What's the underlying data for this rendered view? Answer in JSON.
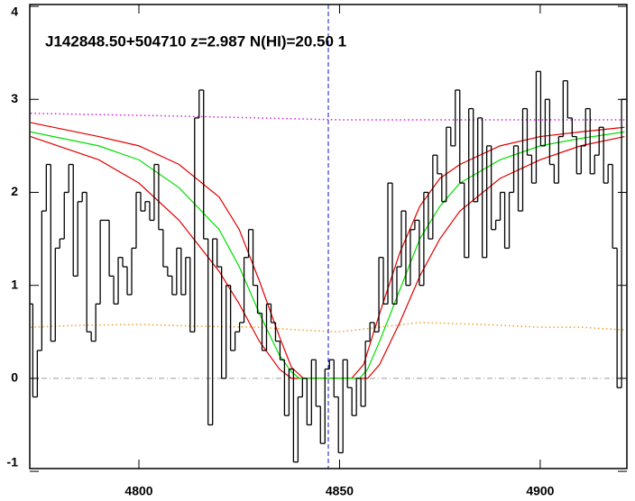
{
  "chart_data": {
    "type": "line",
    "title": "J142848.50+504710 z=2.987 N(HI)=20.50 1",
    "xlim": [
      4772.8,
      4921.6
    ],
    "ylim": [
      -0.97,
      4.02
    ],
    "xticks": [
      4800,
      4850,
      4900
    ],
    "yticks": [
      -1,
      0,
      1,
      2,
      3,
      4
    ],
    "hline": {
      "y": 0,
      "color": "#999999"
    },
    "vline": {
      "x": 4847.2,
      "color": "#1010c8"
    },
    "series": [
      {
        "style": "dotted",
        "color": "#d020e0",
        "x": [
          4773,
          4810,
          4850,
          4880,
          4921
        ],
        "values": [
          2.85,
          2.82,
          2.78,
          2.78,
          2.78
        ]
      },
      {
        "style": "dotted",
        "color": "#f0a030",
        "x": [
          4773,
          4785,
          4800,
          4815,
          4830,
          4840,
          4850,
          4860,
          4870,
          4885,
          4900,
          4910,
          4921
        ],
        "values": [
          0.55,
          0.57,
          0.58,
          0.56,
          0.55,
          0.52,
          0.5,
          0.55,
          0.6,
          0.58,
          0.55,
          0.55,
          0.52
        ]
      },
      {
        "style": "solid",
        "color": "#e00000",
        "x": [
          4773,
          4790,
          4800,
          4810,
          4820,
          4825,
          4830,
          4835,
          4838,
          4841,
          4853,
          4856,
          4860,
          4865,
          4870,
          4875,
          4880,
          4890,
          4900,
          4910,
          4921
        ],
        "values": [
          2.75,
          2.6,
          2.5,
          2.3,
          1.95,
          1.6,
          1.05,
          0.45,
          0.12,
          0,
          0,
          0.15,
          0.7,
          1.35,
          1.85,
          2.15,
          2.3,
          2.5,
          2.6,
          2.65,
          2.7
        ]
      },
      {
        "style": "solid",
        "color": "#e00000",
        "x": [
          4773,
          4790,
          4800,
          4810,
          4820,
          4825,
          4830,
          4835,
          4838,
          4857,
          4860,
          4865,
          4870,
          4875,
          4880,
          4890,
          4900,
          4910,
          4921
        ],
        "values": [
          2.6,
          2.35,
          2.1,
          1.7,
          1.15,
          0.8,
          0.4,
          0.1,
          0,
          0,
          0.15,
          0.6,
          1.1,
          1.5,
          1.8,
          2.15,
          2.35,
          2.5,
          2.6
        ]
      },
      {
        "style": "solid",
        "color": "#00e000",
        "x": [
          4773,
          4790,
          4800,
          4810,
          4820,
          4825,
          4830,
          4835,
          4838,
          4840,
          4855,
          4857,
          4860,
          4865,
          4870,
          4875,
          4880,
          4890,
          4900,
          4910,
          4921
        ],
        "values": [
          2.65,
          2.5,
          2.35,
          2.05,
          1.6,
          1.2,
          0.7,
          0.25,
          0.07,
          0,
          0,
          0.1,
          0.4,
          0.95,
          1.5,
          1.85,
          2.1,
          2.35,
          2.5,
          2.58,
          2.65
        ]
      },
      {
        "style": "step",
        "color": "#000000",
        "x": [
          4773,
          4774.12,
          4775.24,
          4776.36,
          4777.48,
          4778.6,
          4779.72,
          4780.84,
          4781.96,
          4783.08,
          4784.2,
          4785.32,
          4786.44,
          4787.56,
          4788.68,
          4789.8,
          4790.92,
          4792.04,
          4793.16,
          4794.28,
          4795.4,
          4796.52,
          4797.64,
          4798.76,
          4799.88,
          4801,
          4802.12,
          4803.24,
          4804.36,
          4805.48,
          4806.6,
          4807.72,
          4808.84,
          4809.96,
          4811.08,
          4812.2,
          4813.32,
          4814.44,
          4815.56,
          4816.68,
          4817.8,
          4818.92,
          4820.04,
          4821.16,
          4822.28,
          4823.4,
          4824.52,
          4825.64,
          4826.76,
          4827.88,
          4829,
          4830.12,
          4831.24,
          4832.36,
          4833.48,
          4834.6,
          4835.72,
          4836.84,
          4837.96,
          4839.08,
          4840.2,
          4841.32,
          4842.44,
          4843.56,
          4844.68,
          4845.8,
          4846.92,
          4848.04,
          4849.16,
          4850.28,
          4851.4,
          4852.52,
          4853.64,
          4854.76,
          4855.88,
          4857,
          4858.12,
          4859.24,
          4860.36,
          4861.48,
          4862.6,
          4863.72,
          4864.84,
          4865.96,
          4867.08,
          4868.2,
          4869.32,
          4870.44,
          4871.56,
          4872.68,
          4873.8,
          4874.92,
          4876.04,
          4877.16,
          4878.28,
          4879.4,
          4880.52,
          4881.64,
          4882.76,
          4883.88,
          4885,
          4886.12,
          4887.24,
          4888.36,
          4889.48,
          4890.6,
          4891.72,
          4892.84,
          4893.96,
          4895.08,
          4896.2,
          4897.32,
          4898.44,
          4899.56,
          4900.68,
          4901.8,
          4902.92,
          4904.04,
          4905.16,
          4906.28,
          4907.4,
          4908.52,
          4909.64,
          4910.76,
          4911.88,
          4913,
          4914.12,
          4915.24,
          4916.36,
          4917.48,
          4918.6,
          4919.72,
          4920.84
        ],
        "values": [
          0.8,
          -0.2,
          0.3,
          1.8,
          2.3,
          0.4,
          1.4,
          1.5,
          2.0,
          2.3,
          1.1,
          1.9,
          2.0,
          0.5,
          0.4,
          0.8,
          1.7,
          1.7,
          1.1,
          0.8,
          1.3,
          1.2,
          0.9,
          1.4,
          2.0,
          1.8,
          1.9,
          1.7,
          2.3,
          1.6,
          1.2,
          1.1,
          0.9,
          1.4,
          0.9,
          1.3,
          0.5,
          2.8,
          3.1,
          1.5,
          -0.5,
          1.5,
          1.2,
          0.0,
          1.0,
          0.3,
          0.5,
          0.6,
          1.3,
          1.6,
          1.0,
          0.7,
          0.3,
          0.8,
          0.6,
          0.4,
          0.2,
          -0.4,
          0.1,
          -0.9,
          -0.2,
          0.0,
          -0.5,
          0.2,
          -0.3,
          -0.7,
          0.1,
          0.2,
          -0.2,
          -0.8,
          0.2,
          -0.1,
          -0.4,
          0.0,
          -0.3,
          0.4,
          0.6,
          0.5,
          1.3,
          0.8,
          2.1,
          0.8,
          1.2,
          1.8,
          1.0,
          1.6,
          1.7,
          1.0,
          2.0,
          1.5,
          2.4,
          2.2,
          1.9,
          2.7,
          2.5,
          3.1,
          2.1,
          1.3,
          2.9,
          1.9,
          2.8,
          1.3,
          2.5,
          1.6,
          1.7,
          2.0,
          1.4,
          2.0,
          2.5,
          1.8,
          2.9,
          2.4,
          2.1,
          3.3,
          2.5,
          3.0,
          2.3,
          2.1,
          2.6,
          3.2,
          2.8,
          2.6,
          2.2,
          2.5,
          2.9,
          2.2,
          2.4,
          2.7,
          2.1,
          2.3,
          1.4,
          -0.1,
          3.0
        ]
      }
    ]
  }
}
